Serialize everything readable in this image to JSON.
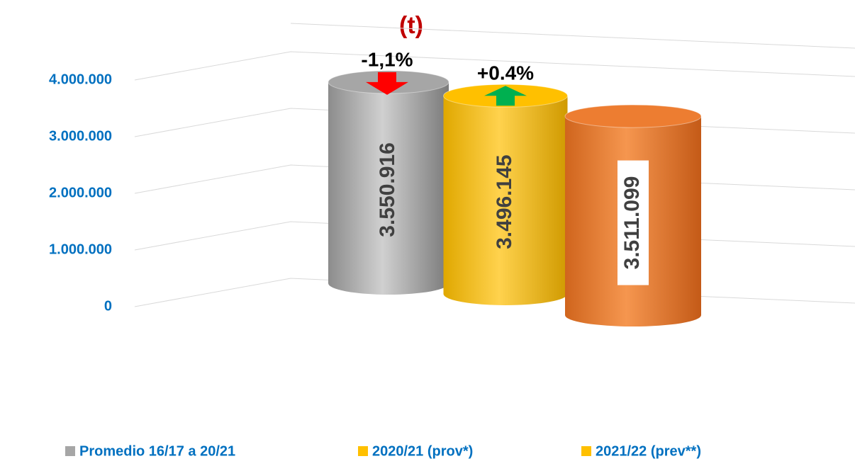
{
  "chart_data": {
    "type": "cylinder",
    "title": "(t)",
    "series": [
      {
        "name": "Promedio 16/17 a 20/21",
        "color": "#a6a6a6",
        "legend_color": "#a6a6a6",
        "values": [
          3550916
        ],
        "value_labels": [
          "3.550.916"
        ]
      },
      {
        "name": "2020/21 (prov*)",
        "color": "#ffc000",
        "legend_color": "#ffc000",
        "values": [
          3496145
        ],
        "value_labels": [
          "3.496.145"
        ]
      },
      {
        "name": "2021/22 (prev**)",
        "color": "#ed7d31",
        "legend_color": "#ffc000",
        "values": [
          3511099
        ],
        "value_labels": [
          "3.511.099"
        ]
      }
    ],
    "annotations": [
      "-1,1%",
      "+0.4%"
    ],
    "ylim": [
      0,
      4500000
    ],
    "yticks": [
      {
        "value": 0,
        "label": "0"
      },
      {
        "value": 1000000,
        "label": "1.000.000"
      },
      {
        "value": 2000000,
        "label": "2.000.000"
      },
      {
        "value": 3000000,
        "label": "3.000.000"
      },
      {
        "value": 4000000,
        "label": "4.000.000"
      }
    ],
    "grid": true
  }
}
